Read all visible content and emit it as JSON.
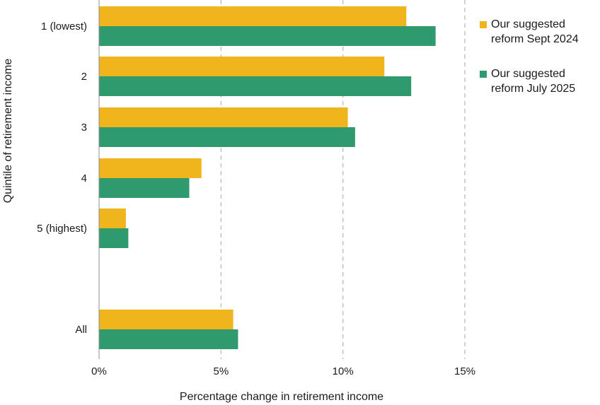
{
  "chart_data": {
    "type": "bar",
    "orientation": "horizontal",
    "categories": [
      "1 (lowest)",
      "2",
      "3",
      "4",
      "5 (highest)",
      "All"
    ],
    "series": [
      {
        "name": "Our suggested reform Sept 2024",
        "color": "#f0b41c",
        "values": [
          12.6,
          11.7,
          10.2,
          4.2,
          1.1,
          5.5
        ]
      },
      {
        "name": "Our suggested reform July 2025",
        "color": "#2e9a6e",
        "values": [
          13.8,
          12.8,
          10.5,
          3.7,
          1.2,
          5.7
        ]
      }
    ],
    "xlabel": "Percentage change in retirement income",
    "ylabel": "Quintile of retirement income",
    "xlim": [
      0,
      15
    ],
    "xticks": [
      0,
      5,
      10,
      15
    ],
    "xtick_labels": [
      "0%",
      "5%",
      "10%",
      "15%"
    ],
    "grid": "vertical dashed",
    "legend_position": "top-right"
  }
}
